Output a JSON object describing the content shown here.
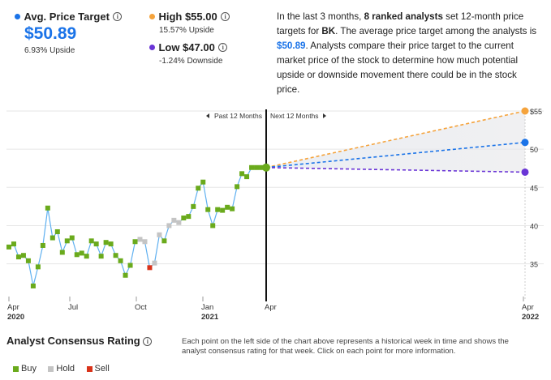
{
  "header": {
    "avg": {
      "label": "Avg. Price Target",
      "value": "$50.89",
      "sub": "6.93% Upside",
      "color": "#1a73e8"
    },
    "high": {
      "label": "High $55.00",
      "sub": "15.57% Upside",
      "color": "#f5a33c"
    },
    "low": {
      "label": "Low $47.00",
      "sub": "-1.24% Downside",
      "color": "#6a35d6"
    },
    "summary": {
      "p1": "In the last 3 months, ",
      "analysts": "8 ranked analysts",
      "p2": " set 12-month price targets for ",
      "ticker": "BK",
      "p3": ". The average price target among the analysts is ",
      "avg": "$50.89",
      "p4": ". Analysts compare their price target to the current market price of the stock to determine how much potential upside or downside movement there could be in the stock price."
    }
  },
  "chart_data": {
    "type": "line",
    "past_label": "Past 12 Months",
    "next_label": "Next 12 Months",
    "y_ticks": [
      "$55",
      "50",
      "45",
      "40",
      "35"
    ],
    "ylim": [
      30,
      56
    ],
    "x_ticks": [
      {
        "label": "Apr",
        "sub": "2020"
      },
      {
        "label": "Jul",
        "sub": ""
      },
      {
        "label": "Oct",
        "sub": ""
      },
      {
        "label": "Jan",
        "sub": "2021"
      },
      {
        "label": "Apr",
        "sub": ""
      },
      {
        "label": "Apr",
        "sub": "2022"
      }
    ],
    "history": [
      {
        "v": 37.2,
        "r": "buy"
      },
      {
        "v": 37.6,
        "r": "buy"
      },
      {
        "v": 35.9,
        "r": "buy"
      },
      {
        "v": 36.1,
        "r": "buy"
      },
      {
        "v": 35.4,
        "r": "buy"
      },
      {
        "v": 32.1,
        "r": "buy"
      },
      {
        "v": 34.6,
        "r": "buy"
      },
      {
        "v": 37.4,
        "r": "buy"
      },
      {
        "v": 42.3,
        "r": "buy"
      },
      {
        "v": 38.4,
        "r": "buy"
      },
      {
        "v": 39.2,
        "r": "buy"
      },
      {
        "v": 36.5,
        "r": "buy"
      },
      {
        "v": 38.0,
        "r": "buy"
      },
      {
        "v": 38.4,
        "r": "buy"
      },
      {
        "v": 36.2,
        "r": "buy"
      },
      {
        "v": 36.4,
        "r": "buy"
      },
      {
        "v": 36.0,
        "r": "buy"
      },
      {
        "v": 38.0,
        "r": "buy"
      },
      {
        "v": 37.6,
        "r": "buy"
      },
      {
        "v": 36.0,
        "r": "buy"
      },
      {
        "v": 37.8,
        "r": "buy"
      },
      {
        "v": 37.6,
        "r": "buy"
      },
      {
        "v": 36.1,
        "r": "buy"
      },
      {
        "v": 35.4,
        "r": "buy"
      },
      {
        "v": 33.5,
        "r": "buy"
      },
      {
        "v": 34.8,
        "r": "buy"
      },
      {
        "v": 37.9,
        "r": "buy"
      },
      {
        "v": 38.2,
        "r": "hold"
      },
      {
        "v": 37.9,
        "r": "hold"
      },
      {
        "v": 34.5,
        "r": "sell"
      },
      {
        "v": 35.1,
        "r": "hold"
      },
      {
        "v": 38.8,
        "r": "hold"
      },
      {
        "v": 38.0,
        "r": "buy"
      },
      {
        "v": 40.0,
        "r": "hold"
      },
      {
        "v": 40.7,
        "r": "hold"
      },
      {
        "v": 40.4,
        "r": "hold"
      },
      {
        "v": 41.0,
        "r": "buy"
      },
      {
        "v": 41.2,
        "r": "buy"
      },
      {
        "v": 42.5,
        "r": "buy"
      },
      {
        "v": 44.9,
        "r": "buy"
      },
      {
        "v": 45.7,
        "r": "buy"
      },
      {
        "v": 42.1,
        "r": "buy"
      },
      {
        "v": 40.0,
        "r": "buy"
      },
      {
        "v": 42.1,
        "r": "buy"
      },
      {
        "v": 42.0,
        "r": "buy"
      },
      {
        "v": 42.4,
        "r": "buy"
      },
      {
        "v": 42.2,
        "r": "buy"
      },
      {
        "v": 45.1,
        "r": "buy"
      },
      {
        "v": 46.8,
        "r": "buy"
      },
      {
        "v": 46.4,
        "r": "buy"
      },
      {
        "v": 47.6,
        "r": "buy"
      },
      {
        "v": 47.6,
        "r": "buy"
      },
      {
        "v": 47.6,
        "r": "buy"
      },
      {
        "v": 47.6,
        "r": "buy"
      }
    ],
    "current_price": 47.6,
    "forecast": {
      "high": 55.0,
      "avg": 50.89,
      "low": 47.0
    },
    "colors": {
      "buy": "#6aaa1c",
      "hold": "#c4c4c4",
      "sell": "#d9331a",
      "line": "#5fb0f0",
      "axis": "#111111"
    }
  },
  "footer": {
    "title": "Analyst Consensus Rating",
    "note": "Each point on the left side of the chart above represents a historical week in time and shows the analyst consensus rating for that week. Click on each point for more information.",
    "legend": [
      {
        "label": "Buy",
        "color": "#6aaa1c"
      },
      {
        "label": "Hold",
        "color": "#c4c4c4"
      },
      {
        "label": "Sell",
        "color": "#d9331a"
      }
    ]
  }
}
